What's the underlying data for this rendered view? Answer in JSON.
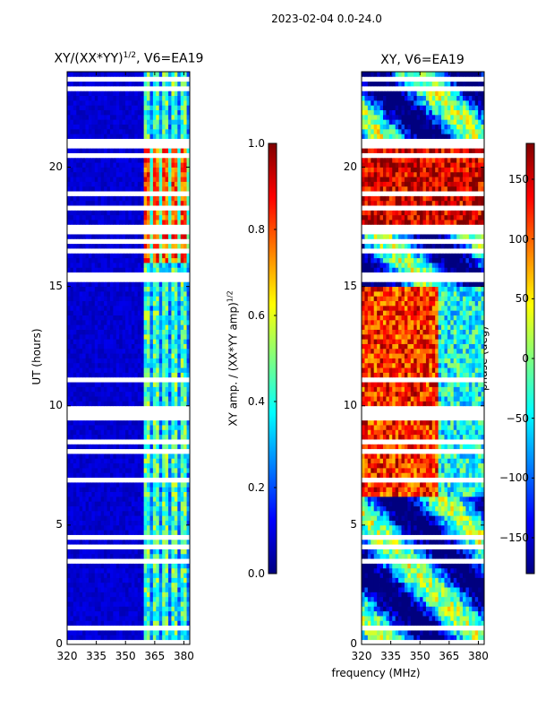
{
  "suptitle": "2023-02-04 0.0-24.0",
  "chart_data": [
    {
      "type": "heatmap",
      "title": "XY/(XX*YY)^1/2, V6=EA19",
      "title_main": "XY/(XX*YY)",
      "title_sup": "1/2",
      "title_tail": ", V6=EA19",
      "xlabel": "",
      "ylabel": "UT (hours)",
      "xlim": [
        320,
        383
      ],
      "ylim": [
        0,
        24
      ],
      "xticks": [
        320,
        335,
        350,
        365,
        380
      ],
      "yticks": [
        0,
        5,
        10,
        15,
        20
      ],
      "colorbar": {
        "label": "XY amp. / (XX*YY amp)^1/2",
        "label_main": "XY amp. / (XX*YY amp)",
        "label_sup": "1/2",
        "range": [
          0.0,
          1.0
        ],
        "ticks": [
          "0.0",
          "0.2",
          "0.4",
          "0.6",
          "0.8",
          "1.0"
        ],
        "tick_values": [
          0.0,
          0.2,
          0.4,
          0.6,
          0.8,
          1.0
        ]
      },
      "description_values": {
        "low_band_freq_range": [
          320,
          360
        ],
        "low_band_level": 0.05,
        "high_band_freq_range": [
          360,
          383
        ],
        "high_band_level": 0.45,
        "high_band_peak_hours": [
          16,
          21
        ],
        "high_band_peak_level": 0.8
      }
    },
    {
      "type": "heatmap",
      "title": "XY, V6=EA19",
      "xlabel": "frequency (MHz)",
      "ylabel": "",
      "xlim": [
        320,
        383
      ],
      "ylim": [
        0,
        24
      ],
      "xticks": [
        320,
        335,
        350,
        365,
        380
      ],
      "yticks": [
        0,
        5,
        10,
        15,
        20
      ],
      "colorbar": {
        "label": "phase (deg)",
        "range": [
          -180,
          180
        ],
        "ticks": [
          "-150",
          "-100",
          "-50",
          "0",
          "50",
          "100",
          "150"
        ],
        "tick_values": [
          -150,
          -100,
          -50,
          0,
          50,
          100,
          150
        ]
      }
    }
  ],
  "colors": {
    "cmap": [
      "#00007f",
      "#0000ff",
      "#007fff",
      "#00ffff",
      "#7fff7f",
      "#ffff00",
      "#ff7f00",
      "#ff0000",
      "#7f0000"
    ]
  }
}
